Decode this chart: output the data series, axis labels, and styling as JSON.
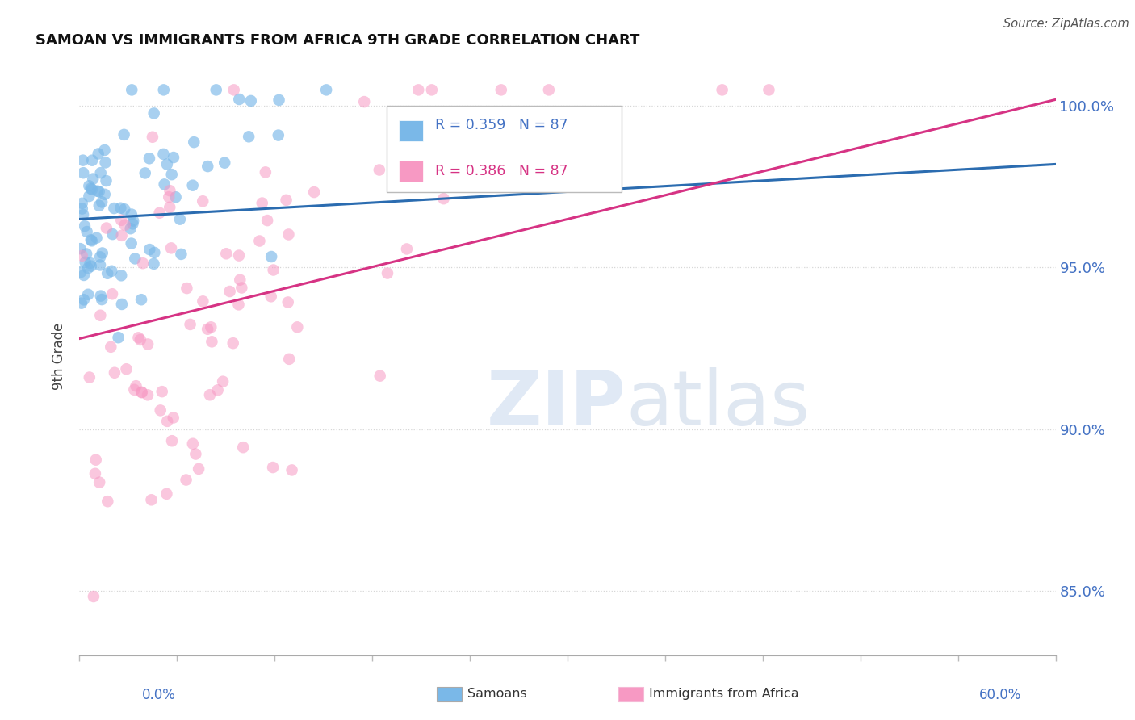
{
  "title": "SAMOAN VS IMMIGRANTS FROM AFRICA 9TH GRADE CORRELATION CHART",
  "source": "Source: ZipAtlas.com",
  "ylabel": "9th Grade",
  "xlim": [
    0.0,
    60.0
  ],
  "ylim": [
    83.0,
    101.5
  ],
  "ytick_labels": [
    "85.0%",
    "90.0%",
    "95.0%",
    "100.0%"
  ],
  "ytick_values": [
    85.0,
    90.0,
    95.0,
    100.0
  ],
  "blue_R": 0.359,
  "pink_R": 0.386,
  "N": 87,
  "blue_color": "#7ab8e8",
  "pink_color": "#f799c3",
  "blue_line_color": "#2b6cb0",
  "pink_line_color": "#d63384",
  "legend_label_blue": "Samoans",
  "legend_label_pink": "Immigrants from Africa",
  "watermark_zip": "ZIP",
  "watermark_atlas": "atlas",
  "background_color": "#ffffff",
  "blue_trend_y0": 96.5,
  "blue_trend_y1": 98.2,
  "pink_trend_y0": 92.8,
  "pink_trend_y1": 100.2
}
